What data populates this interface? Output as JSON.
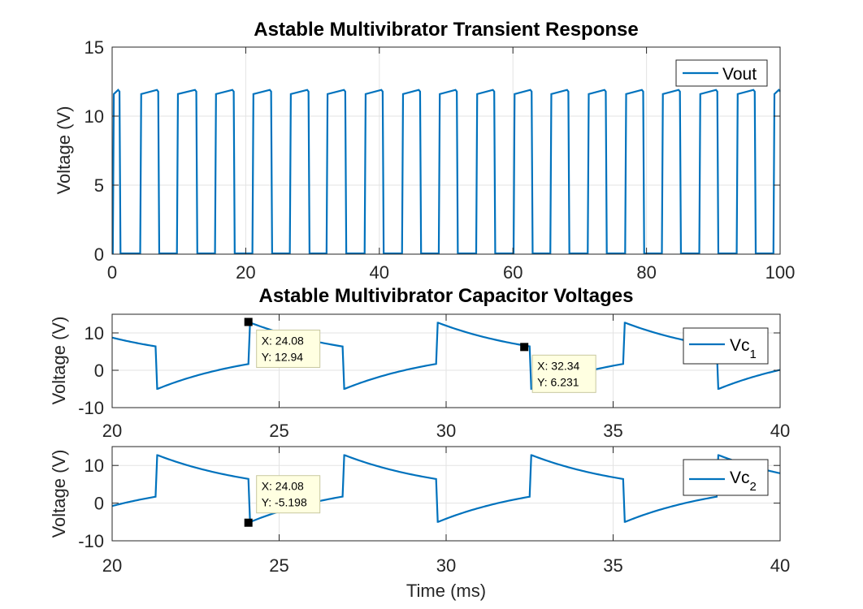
{
  "chart_data": [
    {
      "type": "line",
      "title": "Astable Multivibrator Transient Response",
      "xlabel": "",
      "ylabel": "Voltage (V)",
      "xlim": [
        0,
        100
      ],
      "ylim": [
        0,
        15
      ],
      "xticks": [
        0,
        20,
        40,
        60,
        80,
        100
      ],
      "yticks": [
        0,
        5,
        10,
        15
      ],
      "grid": true,
      "legend_position": "top-right",
      "series": [
        {
          "name": "Vout",
          "color": "#0072BD",
          "waveform": "square",
          "low": 0.05,
          "high_start": 11.6,
          "high_end": 11.9,
          "high_rises": [
            0.1,
            4.2,
            9.7,
            15.4,
            21.0,
            26.6,
            32.1,
            37.8,
            43.4,
            48.9,
            54.5,
            60.1,
            65.6,
            71.2,
            76.8,
            82.3,
            87.9,
            93.5,
            99.0
          ],
          "high_falls": [
            1.1,
            6.9,
            12.6,
            18.2,
            23.8,
            29.4,
            34.9,
            40.5,
            46.1,
            51.6,
            57.2,
            62.8,
            68.3,
            73.9,
            79.5,
            85.0,
            90.6,
            96.2,
            100.0
          ]
        }
      ]
    },
    {
      "type": "line",
      "title": "Astable Multivibrator Capacitor Voltages",
      "xlabel": "",
      "ylabel": "Voltage (V)",
      "xlim": [
        20,
        40
      ],
      "ylim": [
        -10,
        15
      ],
      "xticks": [
        20,
        25,
        30,
        35,
        40
      ],
      "yticks": [
        -10,
        0,
        10
      ],
      "grid": true,
      "legend_position": "top-right",
      "series": [
        {
          "name": "Vc",
          "name_subscript": "1",
          "color": "#0072BD",
          "period": 5.6,
          "vmax": 12.94,
          "vmin": -5.2,
          "pre_drop": 6.4,
          "pre_jump": 1.7,
          "drops_at": [
            21.3,
            26.9,
            32.5,
            38.1
          ],
          "jumps_at": [
            24.08,
            29.7,
            35.3
          ]
        }
      ],
      "datatips": [
        {
          "x": 24.08,
          "y": 12.94,
          "line1": "X: 24.08",
          "line2": "Y: 12.94"
        },
        {
          "x": 32.34,
          "y": 6.231,
          "line1": "X: 32.34",
          "line2": "Y: 6.231"
        }
      ]
    },
    {
      "type": "line",
      "title": "",
      "xlabel": "Time (ms)",
      "ylabel": "Voltage (V)",
      "xlim": [
        20,
        40
      ],
      "ylim": [
        -10,
        15
      ],
      "xticks": [
        20,
        25,
        30,
        35,
        40
      ],
      "yticks": [
        -10,
        0,
        10
      ],
      "grid": true,
      "legend_position": "top-right",
      "series": [
        {
          "name": "Vc",
          "name_subscript": "2",
          "color": "#0072BD",
          "vmax": 12.94,
          "vmin": -5.2,
          "pre_drop": 6.4,
          "pre_jump": 1.7,
          "drops_at": [
            24.08,
            29.7,
            35.3
          ],
          "jumps_at": [
            21.3,
            26.9,
            32.5,
            38.1
          ]
        }
      ],
      "datatips": [
        {
          "x": 24.08,
          "y": -5.198,
          "line1": "X: 24.08",
          "line2": "Y: -5.198"
        }
      ]
    }
  ]
}
